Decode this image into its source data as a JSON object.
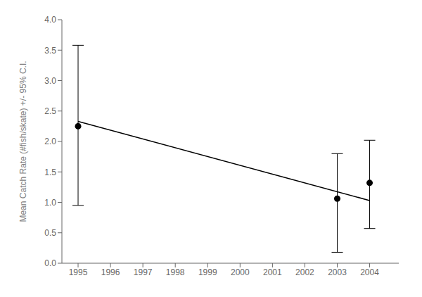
{
  "chart_data": {
    "type": "scatter",
    "ylabel": "Mean Catch Rate (#fish/skate) +/- 95% C.I.",
    "series": [
      {
        "type": "scatter",
        "color": "black",
        "marker": "circle",
        "x": [
          1995,
          2003,
          2004
        ],
        "values": [
          2.25,
          1.06,
          1.32
        ],
        "ci_lower": [
          0.95,
          0.18,
          0.57
        ],
        "ci_upper": [
          3.58,
          1.8,
          2.02
        ]
      },
      {
        "type": "line",
        "color": "black",
        "x": [
          1995,
          2004
        ],
        "values": [
          2.33,
          1.03
        ]
      }
    ],
    "xlim": [
      1994.5,
      2004.9
    ],
    "ylim": [
      0.0,
      4.0
    ],
    "xticks": [
      1995,
      1996,
      1997,
      1998,
      1999,
      2000,
      2001,
      2002,
      2003,
      2004
    ],
    "yticks": [
      {
        "value": 0.0,
        "label": "0.0"
      },
      0.5,
      {
        "value": 1.0,
        "label": "1.0"
      },
      1.5,
      {
        "value": 2.0,
        "label": "2.0"
      },
      2.5,
      {
        "value": 3.0,
        "label": "3.0"
      },
      3.5,
      {
        "value": 4.0,
        "label": "4.0"
      }
    ],
    "grid": false
  }
}
